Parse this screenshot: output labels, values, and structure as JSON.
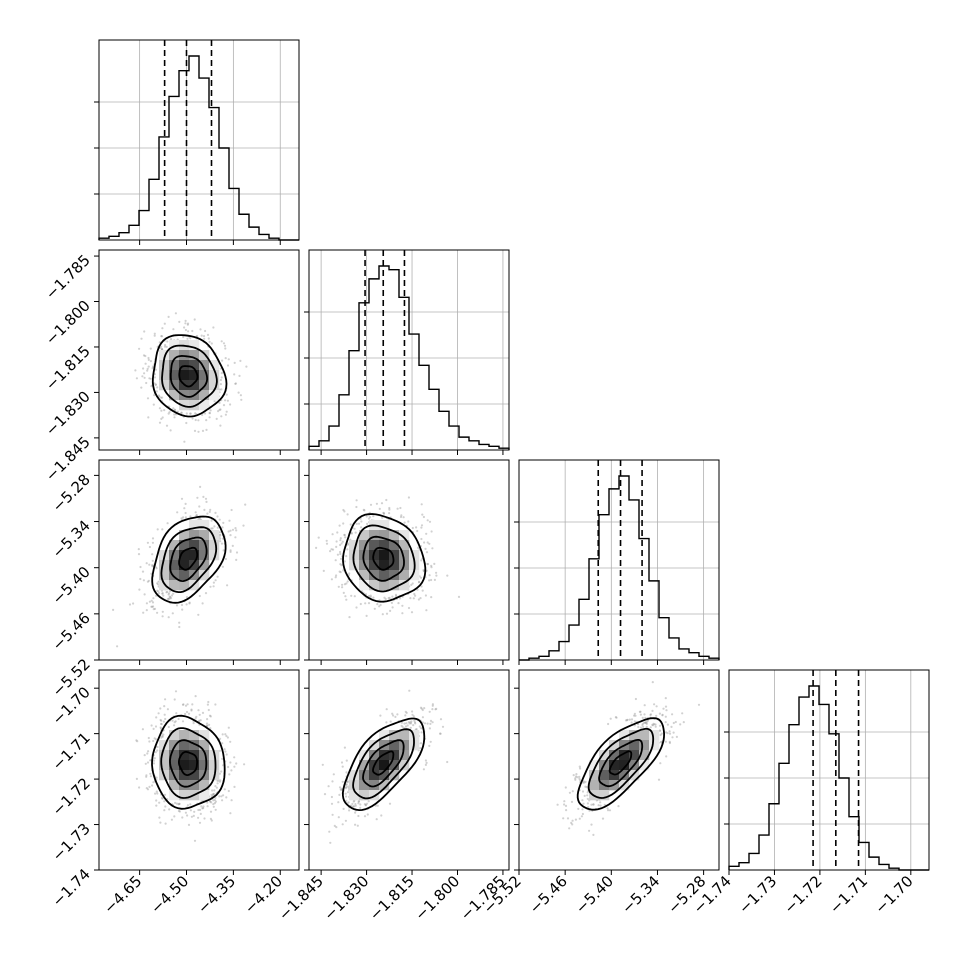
{
  "chart_data": {
    "type": "corner",
    "grid": true,
    "colors": {
      "histogram": "#000000",
      "quantile_line": "#000000",
      "contour": "#000000",
      "sample_points": "#9a9a9a",
      "grid": "#b0b0b0"
    },
    "parameters": [
      {
        "axis_range": [
          -4.78,
          -4.14
        ],
        "ticks": [
          -4.65,
          -4.5,
          -4.35,
          -4.2
        ],
        "tick_labels": [
          "−4.65",
          "−4.50",
          "−4.35",
          "−4.20"
        ],
        "quantiles": [
          -4.57,
          -4.5,
          -4.42
        ],
        "mean": -4.495,
        "sd": 0.058
      },
      {
        "axis_range": [
          -1.849,
          -1.783
        ],
        "ticks": [
          -1.845,
          -1.83,
          -1.815,
          -1.8,
          -1.785
        ],
        "tick_labels": [
          "−1.845",
          "−1.830",
          "−1.815",
          "−1.800",
          "−1.785"
        ],
        "quantiles": [
          -1.8305,
          -1.8245,
          -1.8175
        ],
        "mean": -1.8245,
        "sd": 0.0067
      },
      {
        "axis_range": [
          -5.52,
          -5.26
        ],
        "ticks": [
          -5.52,
          -5.46,
          -5.4,
          -5.34,
          -5.28
        ],
        "tick_labels": [
          "−5.52",
          "−5.46",
          "−5.40",
          "−5.34",
          "−5.28"
        ],
        "quantiles": [
          -5.417,
          -5.388,
          -5.36
        ],
        "mean": -5.388,
        "sd": 0.028
      },
      {
        "axis_range": [
          -1.74,
          -1.696
        ],
        "ticks": [
          -1.74,
          -1.73,
          -1.72,
          -1.71,
          -1.7
        ],
        "tick_labels": [
          "−1.74",
          "−1.73",
          "−1.72",
          "−1.71",
          "−1.70"
        ],
        "quantiles": [
          -1.7215,
          -1.7165,
          -1.7115
        ],
        "mean": -1.7165,
        "sd": 0.005
      }
    ],
    "histogram_heights": [
      [
        0.01,
        0.02,
        0.04,
        0.08,
        0.16,
        0.33,
        0.56,
        0.78,
        0.92,
        1.0,
        0.88,
        0.72,
        0.5,
        0.28,
        0.14,
        0.07,
        0.03,
        0.01,
        0.0,
        0.0
      ],
      [
        0.02,
        0.05,
        0.13,
        0.3,
        0.54,
        0.8,
        0.93,
        1.0,
        0.98,
        0.83,
        0.63,
        0.46,
        0.33,
        0.21,
        0.13,
        0.07,
        0.05,
        0.03,
        0.02,
        0.01
      ],
      [
        0.0,
        0.01,
        0.02,
        0.05,
        0.1,
        0.19,
        0.33,
        0.55,
        0.79,
        0.93,
        1.0,
        0.87,
        0.66,
        0.43,
        0.23,
        0.12,
        0.06,
        0.04,
        0.02,
        0.01
      ],
      [
        0.02,
        0.04,
        0.09,
        0.19,
        0.36,
        0.58,
        0.79,
        0.94,
        1.0,
        0.9,
        0.74,
        0.5,
        0.29,
        0.15,
        0.07,
        0.03,
        0.01,
        0.0,
        0.0,
        0.0
      ]
    ],
    "correlations": {
      "1-0": -0.1,
      "2-0": 0.38,
      "2-1": -0.12,
      "3-0": -0.05,
      "3-1": 0.65,
      "3-2": 0.7
    },
    "contour_levels_sigma": [
      0.5,
      1.0,
      1.5,
      2.0
    ]
  }
}
